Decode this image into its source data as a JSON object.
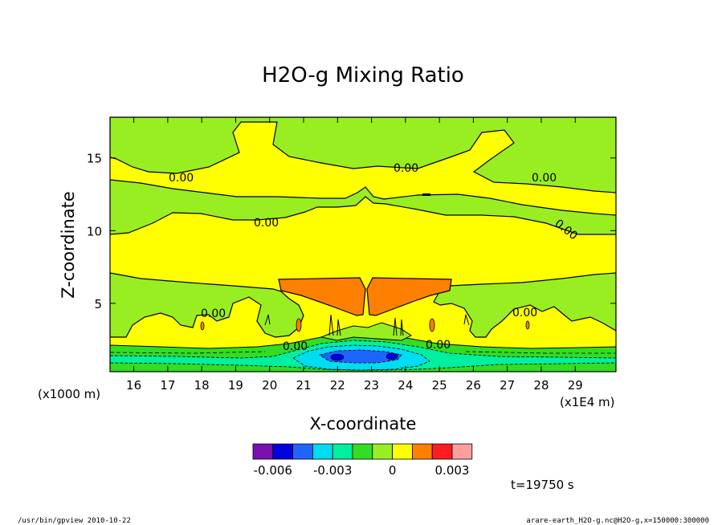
{
  "chart_data": {
    "type": "heatmap",
    "title": "H2O-g Mixing Ratio",
    "xlabel": "X-coordinate",
    "ylabel": "Z-coordinate",
    "x_unit_left": "(x1000 m)",
    "x_unit_right": "(x1E4 m)",
    "x_ticks": [
      "16",
      "17",
      "18",
      "19",
      "20",
      "21",
      "22",
      "23",
      "24",
      "25",
      "26",
      "27",
      "28",
      "29"
    ],
    "y_ticks": [
      "5",
      "10",
      "15"
    ],
    "xlim": [
      15.3,
      30.2
    ],
    "ylim": [
      0.3,
      17.8
    ],
    "contour_labels": [
      "0.00",
      "0.00",
      "0.00",
      "0.00",
      "0.00",
      "0.00",
      "0.00",
      "0.00",
      "0.00"
    ],
    "colorbar": {
      "colors": [
        "#7a0fb0",
        "#0000dd",
        "#1e64ff",
        "#00dcf0",
        "#00f0a0",
        "#33dd22",
        "#99ee22",
        "#ffff00",
        "#ff7f00",
        "#ff1e1e",
        "#ff9e9e"
      ],
      "tick_labels": [
        "-0.006",
        "-0.003",
        "0",
        "0.003"
      ]
    },
    "time_label": "t=19750 s"
  },
  "footer": {
    "left": "/usr/bin/gpview   2010-10-22",
    "right": "arare-earth_H2O-g.nc@H2O-g,x=150000:300000"
  }
}
